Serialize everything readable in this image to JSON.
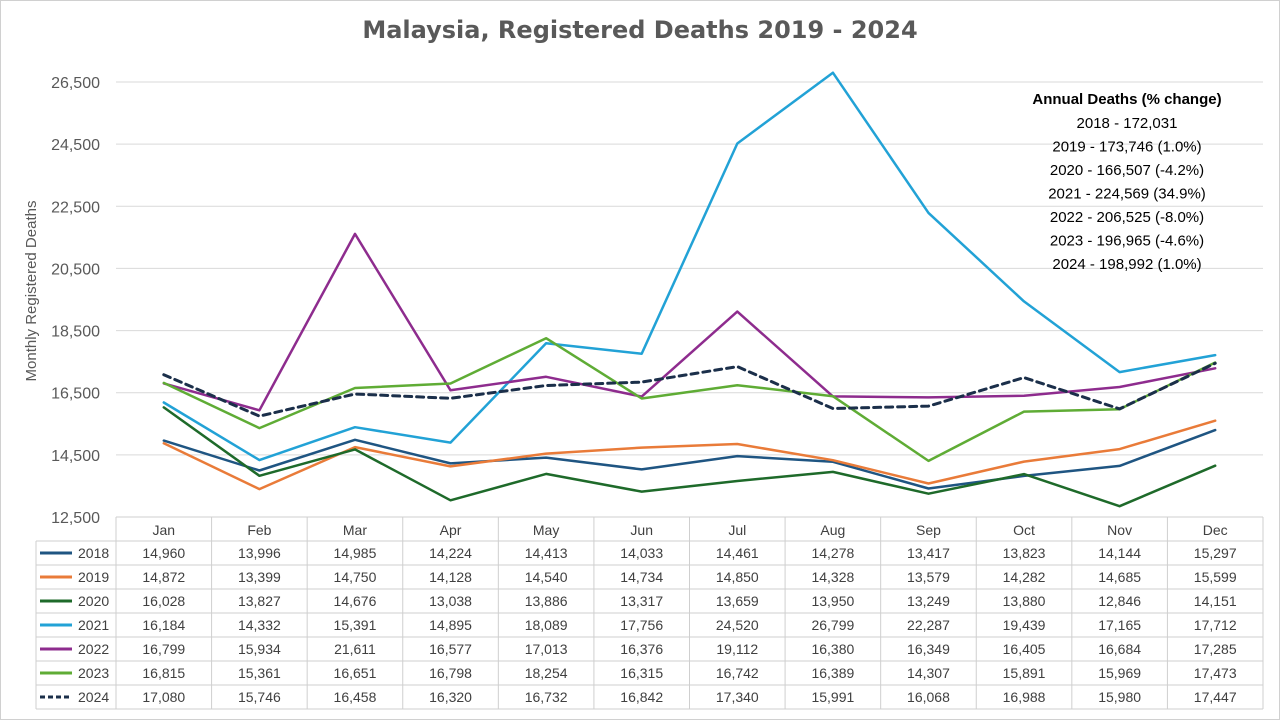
{
  "chart_data": {
    "type": "line",
    "title": "Malaysia, Registered Deaths 2019 - 2024",
    "ylabel": "Monthly Registered Deaths",
    "xlabel": "",
    "ylim": [
      12500,
      26500
    ],
    "yticks": [
      "12,500",
      "14,500",
      "16,500",
      "18,500",
      "20,500",
      "22,500",
      "24,500",
      "26,500"
    ],
    "ytick_values": [
      12500,
      14500,
      16500,
      18500,
      20500,
      22500,
      24500,
      26500
    ],
    "categories": [
      "Jan",
      "Feb",
      "Mar",
      "Apr",
      "May",
      "Jun",
      "Jul",
      "Aug",
      "Sep",
      "Oct",
      "Nov",
      "Dec"
    ],
    "series": [
      {
        "name": "2018",
        "color": "#1f5582",
        "dashed": false,
        "values": [
          14960,
          13996,
          14985,
          14224,
          14413,
          14033,
          14461,
          14278,
          13417,
          13823,
          14144,
          15297
        ],
        "labels": [
          "14,960",
          "13,996",
          "14,985",
          "14,224",
          "14,413",
          "14,033",
          "14,461",
          "14,278",
          "13,417",
          "13,823",
          "14,144",
          "15,297"
        ]
      },
      {
        "name": "2019",
        "color": "#e97b39",
        "dashed": false,
        "values": [
          14872,
          13399,
          14750,
          14128,
          14540,
          14734,
          14850,
          14328,
          13579,
          14282,
          14685,
          15599
        ],
        "labels": [
          "14,872",
          "13,399",
          "14,750",
          "14,128",
          "14,540",
          "14,734",
          "14,850",
          "14,328",
          "13,579",
          "14,282",
          "14,685",
          "15,599"
        ]
      },
      {
        "name": "2020",
        "color": "#1e6a2a",
        "dashed": false,
        "values": [
          16028,
          13827,
          14676,
          13038,
          13886,
          13317,
          13659,
          13950,
          13249,
          13880,
          12846,
          14151
        ],
        "labels": [
          "16,028",
          "13,827",
          "14,676",
          "13,038",
          "13,886",
          "13,317",
          "13,659",
          "13,950",
          "13,249",
          "13,880",
          "12,846",
          "14,151"
        ]
      },
      {
        "name": "2021",
        "color": "#22a2d6",
        "dashed": false,
        "values": [
          16184,
          14332,
          15391,
          14895,
          18089,
          17756,
          24520,
          26799,
          22287,
          19439,
          17165,
          17712
        ],
        "labels": [
          "16,184",
          "14,332",
          "15,391",
          "14,895",
          "18,089",
          "17,756",
          "24,520",
          "26,799",
          "22,287",
          "19,439",
          "17,165",
          "17,712"
        ]
      },
      {
        "name": "2022",
        "color": "#8e2c8e",
        "dashed": false,
        "values": [
          16799,
          15934,
          21611,
          16577,
          17013,
          16376,
          19112,
          16380,
          16349,
          16405,
          16684,
          17285
        ],
        "labels": [
          "16,799",
          "15,934",
          "21,611",
          "16,577",
          "17,013",
          "16,376",
          "19,112",
          "16,380",
          "16,349",
          "16,405",
          "16,684",
          "17,285"
        ]
      },
      {
        "name": "2023",
        "color": "#5fac35",
        "dashed": false,
        "values": [
          16815,
          15361,
          16651,
          16798,
          18254,
          16315,
          16742,
          16389,
          14307,
          15891,
          15969,
          17473
        ],
        "labels": [
          "16,815",
          "15,361",
          "16,651",
          "16,798",
          "18,254",
          "16,315",
          "16,742",
          "16,389",
          "14,307",
          "15,891",
          "15,969",
          "17,473"
        ]
      },
      {
        "name": "2024",
        "color": "#1b2f4a",
        "dashed": true,
        "values": [
          17080,
          15746,
          16458,
          16320,
          16732,
          16842,
          17340,
          15991,
          16068,
          16988,
          15980,
          17447
        ],
        "labels": [
          "17,080",
          "15,746",
          "16,458",
          "16,320",
          "16,732",
          "16,842",
          "17,340",
          "15,991",
          "16,068",
          "16,988",
          "15,980",
          "17,447"
        ]
      }
    ],
    "annotation": {
      "heading": "Annual Deaths (% change)",
      "lines": [
        "2018 - 172,031",
        "2019 - 173,746  (1.0%)",
        "2020 - 166,507 (-4.2%)",
        "2021 - 224,569  (34.9%)",
        "2022 - 206,525 (-8.0%)",
        "2023 - 196,965 (-4.6%)",
        "2024 - 198,992 (1.0%)"
      ]
    },
    "legend": "data table below chart",
    "grid": true
  }
}
